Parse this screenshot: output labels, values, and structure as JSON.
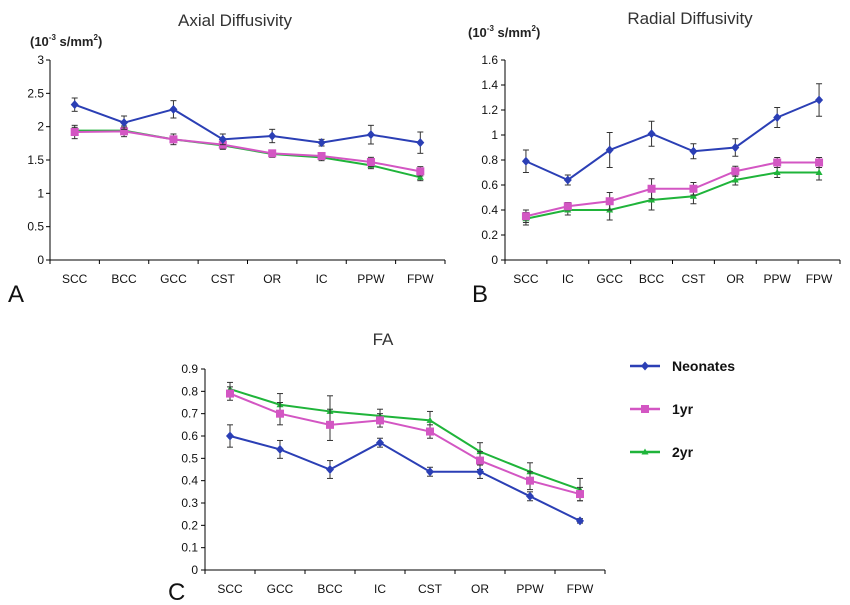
{
  "legend": {
    "entries": [
      {
        "label": "Neonates",
        "color": "#2b3fb5",
        "marker": "diamond"
      },
      {
        "label": "1yr",
        "color": "#d356c3",
        "marker": "square"
      },
      {
        "label": "2yr",
        "color": "#1fb43a",
        "marker": "triangle"
      }
    ]
  },
  "chart_data": [
    {
      "panel": "A",
      "type": "line",
      "title": "Axial Diffusivity",
      "unit_base": "(10",
      "unit_exp": "-3",
      "unit_rest": " s/mm",
      "unit_sq": "2",
      "unit_close": ")",
      "categories": [
        "SCC",
        "BCC",
        "GCC",
        "CST",
        "OR",
        "IC",
        "PPW",
        "FPW"
      ],
      "ylim": [
        0,
        3
      ],
      "yticks": [
        0,
        0.5,
        1,
        1.5,
        2,
        2.5,
        3
      ],
      "ytick_labels": [
        "0",
        "0.5",
        "1",
        "1.5",
        "2",
        "2.5",
        "3"
      ],
      "series": [
        {
          "name": "Neonates",
          "values": [
            2.33,
            2.06,
            2.26,
            1.81,
            1.86,
            1.76,
            1.88,
            1.76
          ],
          "err": [
            0.1,
            0.1,
            0.13,
            0.08,
            0.1,
            0.05,
            0.14,
            0.16
          ]
        },
        {
          "name": "1yr",
          "values": [
            1.92,
            1.93,
            1.81,
            1.73,
            1.6,
            1.56,
            1.47,
            1.33
          ],
          "err": [
            0.1,
            0.08,
            0.08,
            0.07,
            0.05,
            0.05,
            0.07,
            0.07
          ]
        },
        {
          "name": "2yr",
          "values": [
            1.94,
            1.94,
            1.81,
            1.72,
            1.59,
            1.54,
            1.42,
            1.24
          ],
          "err": [
            0.05,
            0.05,
            0.05,
            0.05,
            0.05,
            0.05,
            0.05,
            0.05
          ]
        }
      ]
    },
    {
      "panel": "B",
      "type": "line",
      "title": "Radial Diffusivity",
      "unit_base": "(10",
      "unit_exp": "-3",
      "unit_rest": " s/mm",
      "unit_sq": "2",
      "unit_close": ")",
      "categories": [
        "SCC",
        "IC",
        "GCC",
        "BCC",
        "CST",
        "OR",
        "PPW",
        "FPW"
      ],
      "ylim": [
        0,
        1.6
      ],
      "yticks": [
        0,
        0.2,
        0.4,
        0.6,
        0.8,
        1,
        1.2,
        1.4,
        1.6
      ],
      "ytick_labels": [
        "0",
        "0.2",
        "0.4",
        "0.6",
        "0.8",
        "1",
        "1.2",
        "1.4",
        "1.6"
      ],
      "series": [
        {
          "name": "Neonates",
          "values": [
            0.79,
            0.64,
            0.88,
            1.01,
            0.87,
            0.9,
            1.14,
            1.28
          ],
          "err": [
            0.09,
            0.04,
            0.14,
            0.1,
            0.06,
            0.07,
            0.08,
            0.13
          ]
        },
        {
          "name": "1yr",
          "values": [
            0.35,
            0.43,
            0.47,
            0.57,
            0.57,
            0.71,
            0.78,
            0.78
          ],
          "err": [
            0.05,
            0.03,
            0.07,
            0.08,
            0.05,
            0.04,
            0.04,
            0.04
          ]
        },
        {
          "name": "2yr",
          "values": [
            0.33,
            0.4,
            0.4,
            0.48,
            0.51,
            0.64,
            0.7,
            0.7
          ],
          "err": [
            0.05,
            0.04,
            0.08,
            0.08,
            0.06,
            0.04,
            0.04,
            0.06
          ]
        }
      ]
    },
    {
      "panel": "C",
      "type": "line",
      "title": "FA",
      "categories": [
        "SCC",
        "GCC",
        "BCC",
        "IC",
        "CST",
        "OR",
        "PPW",
        "FPW"
      ],
      "ylim": [
        0,
        0.9
      ],
      "yticks": [
        0,
        0.1,
        0.2,
        0.3,
        0.4,
        0.5,
        0.6,
        0.7,
        0.8,
        0.9
      ],
      "ytick_labels": [
        "0",
        "0.1",
        "0.2",
        "0.3",
        "0.4",
        "0.5",
        "0.6",
        "0.7",
        "0.8",
        "0.9"
      ],
      "series": [
        {
          "name": "Neonates",
          "values": [
            0.6,
            0.54,
            0.45,
            0.57,
            0.44,
            0.44,
            0.33,
            0.22
          ],
          "err": [
            0.05,
            0.04,
            0.04,
            0.02,
            0.02,
            0.03,
            0.02,
            0.01
          ]
        },
        {
          "name": "1yr",
          "values": [
            0.79,
            0.7,
            0.65,
            0.67,
            0.62,
            0.49,
            0.4,
            0.34
          ],
          "err": [
            0.03,
            0.05,
            0.07,
            0.03,
            0.03,
            0.04,
            0.04,
            0.03
          ]
        },
        {
          "name": "2yr",
          "values": [
            0.81,
            0.74,
            0.71,
            0.69,
            0.67,
            0.53,
            0.44,
            0.36
          ],
          "err": [
            0.03,
            0.05,
            0.07,
            0.03,
            0.04,
            0.04,
            0.04,
            0.05
          ]
        }
      ]
    }
  ]
}
